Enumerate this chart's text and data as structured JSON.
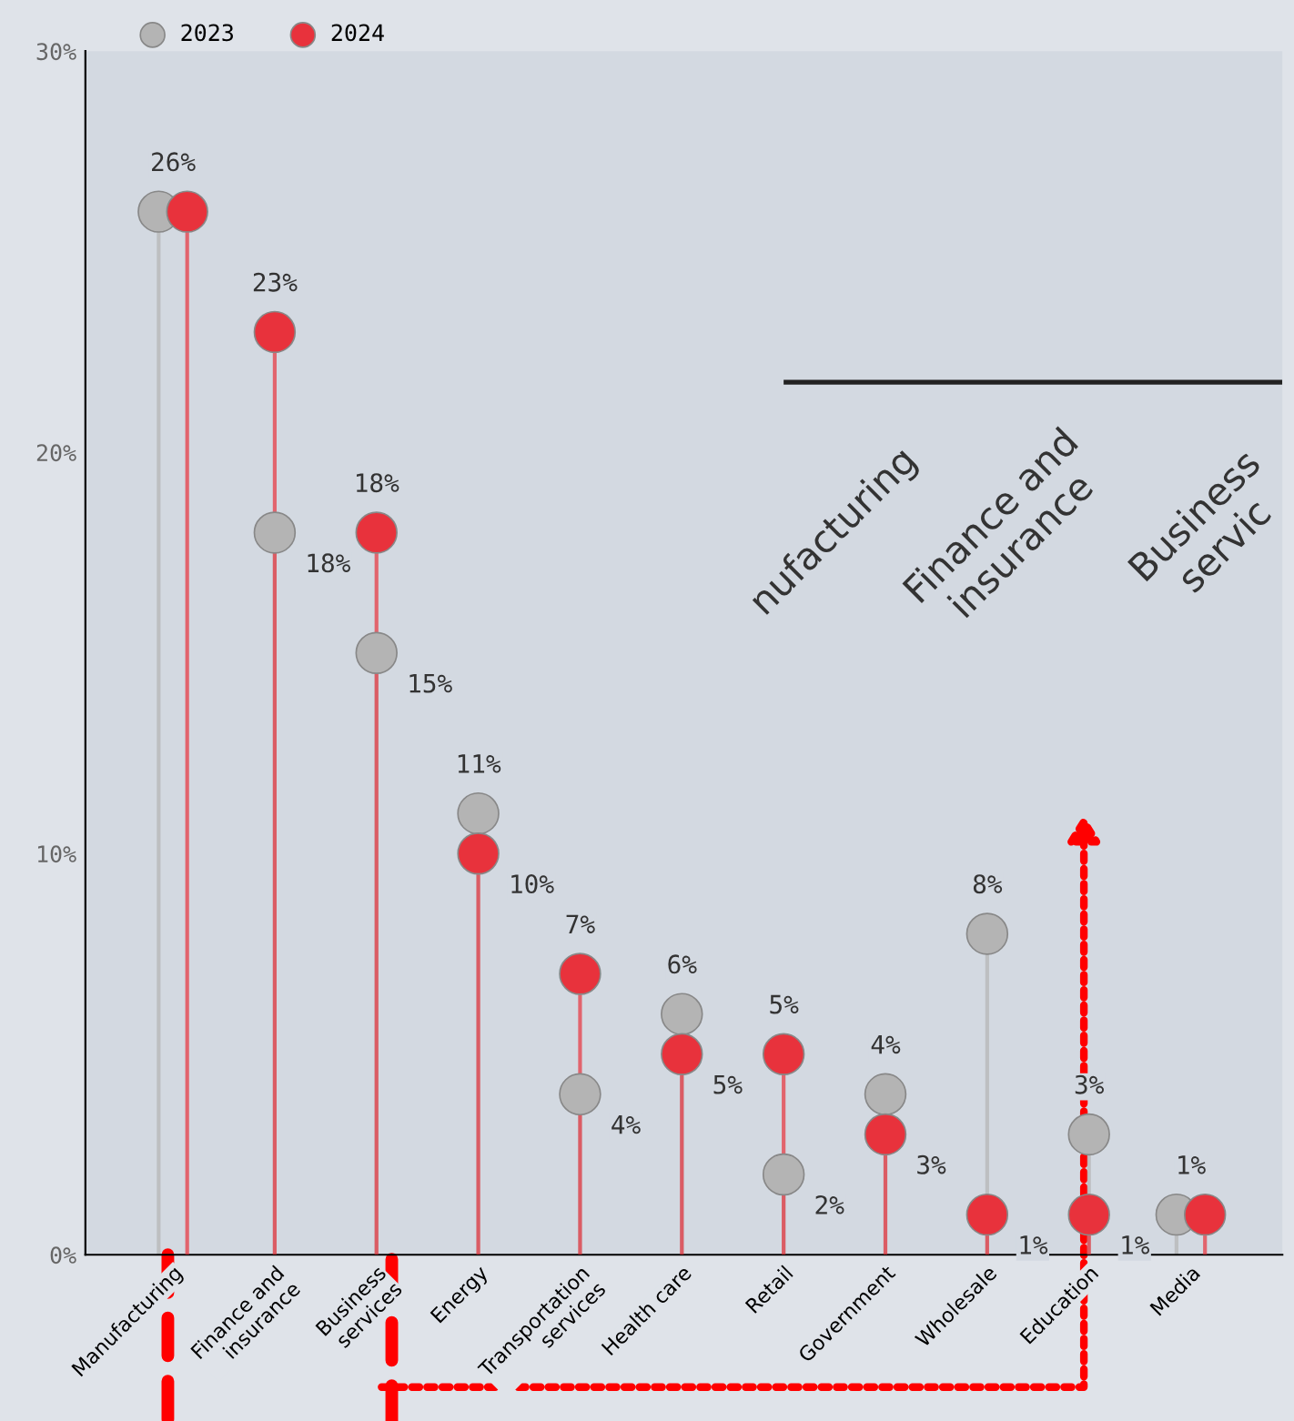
{
  "chart_data": {
    "type": "lollipop",
    "categories": [
      "Manufacturing",
      "Finance and\ninsurance",
      "Business\nservices",
      "Energy",
      "Transportation\nservices",
      "Health care",
      "Retail",
      "Government",
      "Wholesale",
      "Education",
      "Media"
    ],
    "series": [
      {
        "name": "2023",
        "color": "#b4b4b4",
        "values": [
          26,
          18,
          15,
          11,
          4,
          6,
          2,
          4,
          8,
          3,
          1
        ],
        "value_labels": [
          null,
          "18%",
          "15%",
          "11%",
          "4%",
          "6%",
          "2%",
          "4%",
          "8%",
          "3%",
          null
        ]
      },
      {
        "name": "2024",
        "color": "#e8323c",
        "values": [
          26,
          23,
          18,
          10,
          7,
          5,
          5,
          3,
          1,
          1,
          1
        ],
        "value_labels": [
          "26%",
          "23%",
          "18%",
          "10%",
          "7%",
          "5%",
          "5%",
          "3%",
          "1%",
          "1%",
          "1%"
        ]
      }
    ],
    "ylim": [
      0,
      30
    ],
    "yticks": [
      {
        "value": 0,
        "label": "0%"
      },
      {
        "value": 10,
        "label": "10%"
      },
      {
        "value": 20,
        "label": "20%"
      },
      {
        "value": 30,
        "label": "30%"
      }
    ],
    "grid": false,
    "legend": "top left",
    "marker": "circle",
    "annotations": [
      "nufacturing",
      "Finance and\ninsurance",
      "Business\nservic"
    ]
  }
}
